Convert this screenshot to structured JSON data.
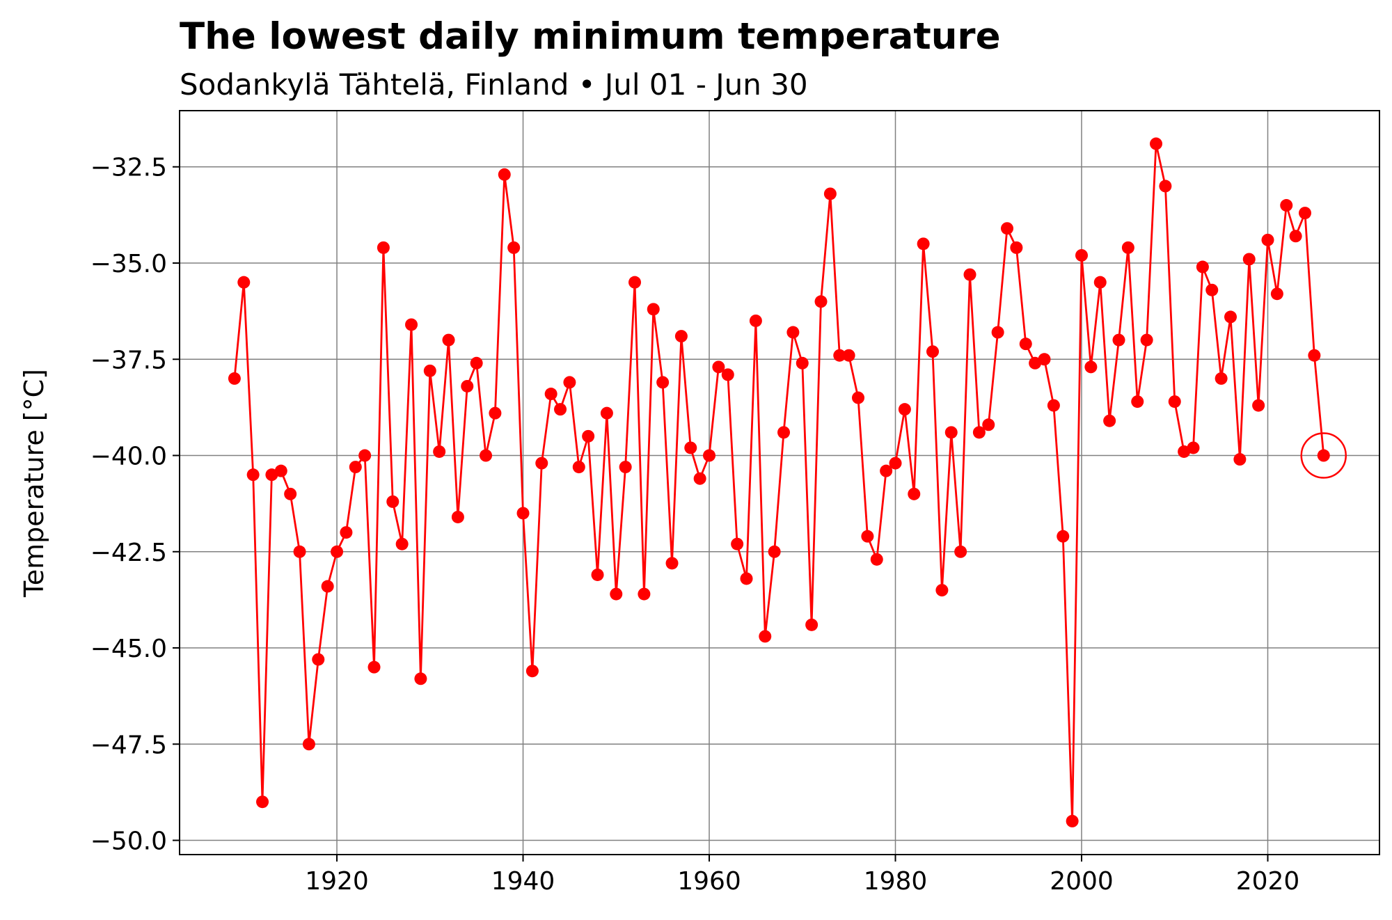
{
  "chart_data": {
    "type": "line",
    "title": "The lowest daily minimum temperature",
    "subtitle": "Sodankylä Tähtelä, Finland • Jul 01 - Jun 30",
    "xlabel": "",
    "ylabel": "Temperature [°C]",
    "xlim": [
      1903.1,
      2032.0
    ],
    "ylim": [
      -50.37,
      -31.04
    ],
    "grid": true,
    "x_ticks": [
      1920,
      1940,
      1960,
      1980,
      2000,
      2020
    ],
    "y_ticks": [
      -32.5,
      -35.0,
      -37.5,
      -40.0,
      -42.5,
      -45.0,
      -47.5,
      -50.0
    ],
    "y_tick_labels": [
      "−32.5",
      "−35.0",
      "−37.5",
      "−40.0",
      "−42.5",
      "−45.0",
      "−47.5",
      "−50.0"
    ],
    "x_tick_labels": [
      "1920",
      "1940",
      "1960",
      "1980",
      "2000",
      "2020"
    ],
    "series_color": "#ff0000",
    "highlight": {
      "x": 2026,
      "y": -40.0
    },
    "x": [
      1909,
      1910,
      1911,
      1912,
      1913,
      1914,
      1915,
      1916,
      1917,
      1918,
      1919,
      1920,
      1921,
      1922,
      1923,
      1924,
      1925,
      1926,
      1927,
      1928,
      1929,
      1930,
      1931,
      1932,
      1933,
      1934,
      1935,
      1936,
      1937,
      1938,
      1939,
      1940,
      1941,
      1942,
      1943,
      1944,
      1945,
      1946,
      1947,
      1948,
      1949,
      1950,
      1951,
      1952,
      1953,
      1954,
      1955,
      1956,
      1957,
      1958,
      1959,
      1960,
      1961,
      1962,
      1963,
      1964,
      1965,
      1966,
      1967,
      1968,
      1969,
      1970,
      1971,
      1972,
      1973,
      1974,
      1975,
      1976,
      1977,
      1978,
      1979,
      1980,
      1981,
      1982,
      1983,
      1984,
      1985,
      1986,
      1987,
      1988,
      1989,
      1990,
      1991,
      1992,
      1993,
      1994,
      1995,
      1996,
      1997,
      1998,
      1999,
      2000,
      2001,
      2002,
      2003,
      2004,
      2005,
      2006,
      2007,
      2008,
      2009,
      2010,
      2011,
      2012,
      2013,
      2014,
      2015,
      2016,
      2017,
      2018,
      2019,
      2020,
      2021,
      2022,
      2023,
      2024,
      2025,
      2026
    ],
    "y": [
      -38.0,
      -35.5,
      -40.5,
      -49.0,
      -40.5,
      -40.4,
      -41.0,
      -42.5,
      -47.5,
      -45.3,
      -43.4,
      -42.5,
      -42.0,
      -40.3,
      -40.0,
      -45.5,
      -34.6,
      -41.2,
      -42.3,
      -36.6,
      -45.8,
      -37.8,
      -39.9,
      -37.0,
      -41.6,
      -38.2,
      -37.6,
      -40.0,
      -38.9,
      -32.7,
      -34.6,
      -41.5,
      -45.6,
      -40.2,
      -38.4,
      -38.8,
      -38.1,
      -40.3,
      -39.5,
      -43.1,
      -38.9,
      -43.6,
      -40.3,
      -35.5,
      -43.6,
      -36.2,
      -38.1,
      -42.8,
      -36.9,
      -39.8,
      -40.6,
      -40.0,
      -37.7,
      -37.9,
      -42.3,
      -43.2,
      -36.5,
      -44.7,
      -42.5,
      -39.4,
      -36.8,
      -37.6,
      -44.4,
      -36.0,
      -33.2,
      -37.4,
      -37.4,
      -38.5,
      -42.1,
      -42.7,
      -40.4,
      -40.2,
      -38.8,
      -41.0,
      -34.5,
      -37.3,
      -43.5,
      -39.4,
      -42.5,
      -35.3,
      -39.4,
      -39.2,
      -36.8,
      -34.1,
      -34.6,
      -37.1,
      -37.6,
      -37.5,
      -38.7,
      -42.1,
      -49.5,
      -34.8,
      -37.7,
      -35.5,
      -39.1,
      -37.0,
      -34.6,
      -38.6,
      -37.0,
      -31.9,
      -33.0,
      -38.6,
      -39.9,
      -39.8,
      -35.1,
      -35.7,
      -38.0,
      -36.4,
      -40.1,
      -34.9,
      -38.7,
      -34.4,
      -35.8,
      -33.5,
      -34.3,
      -33.7,
      -37.4,
      -40.0
    ]
  }
}
